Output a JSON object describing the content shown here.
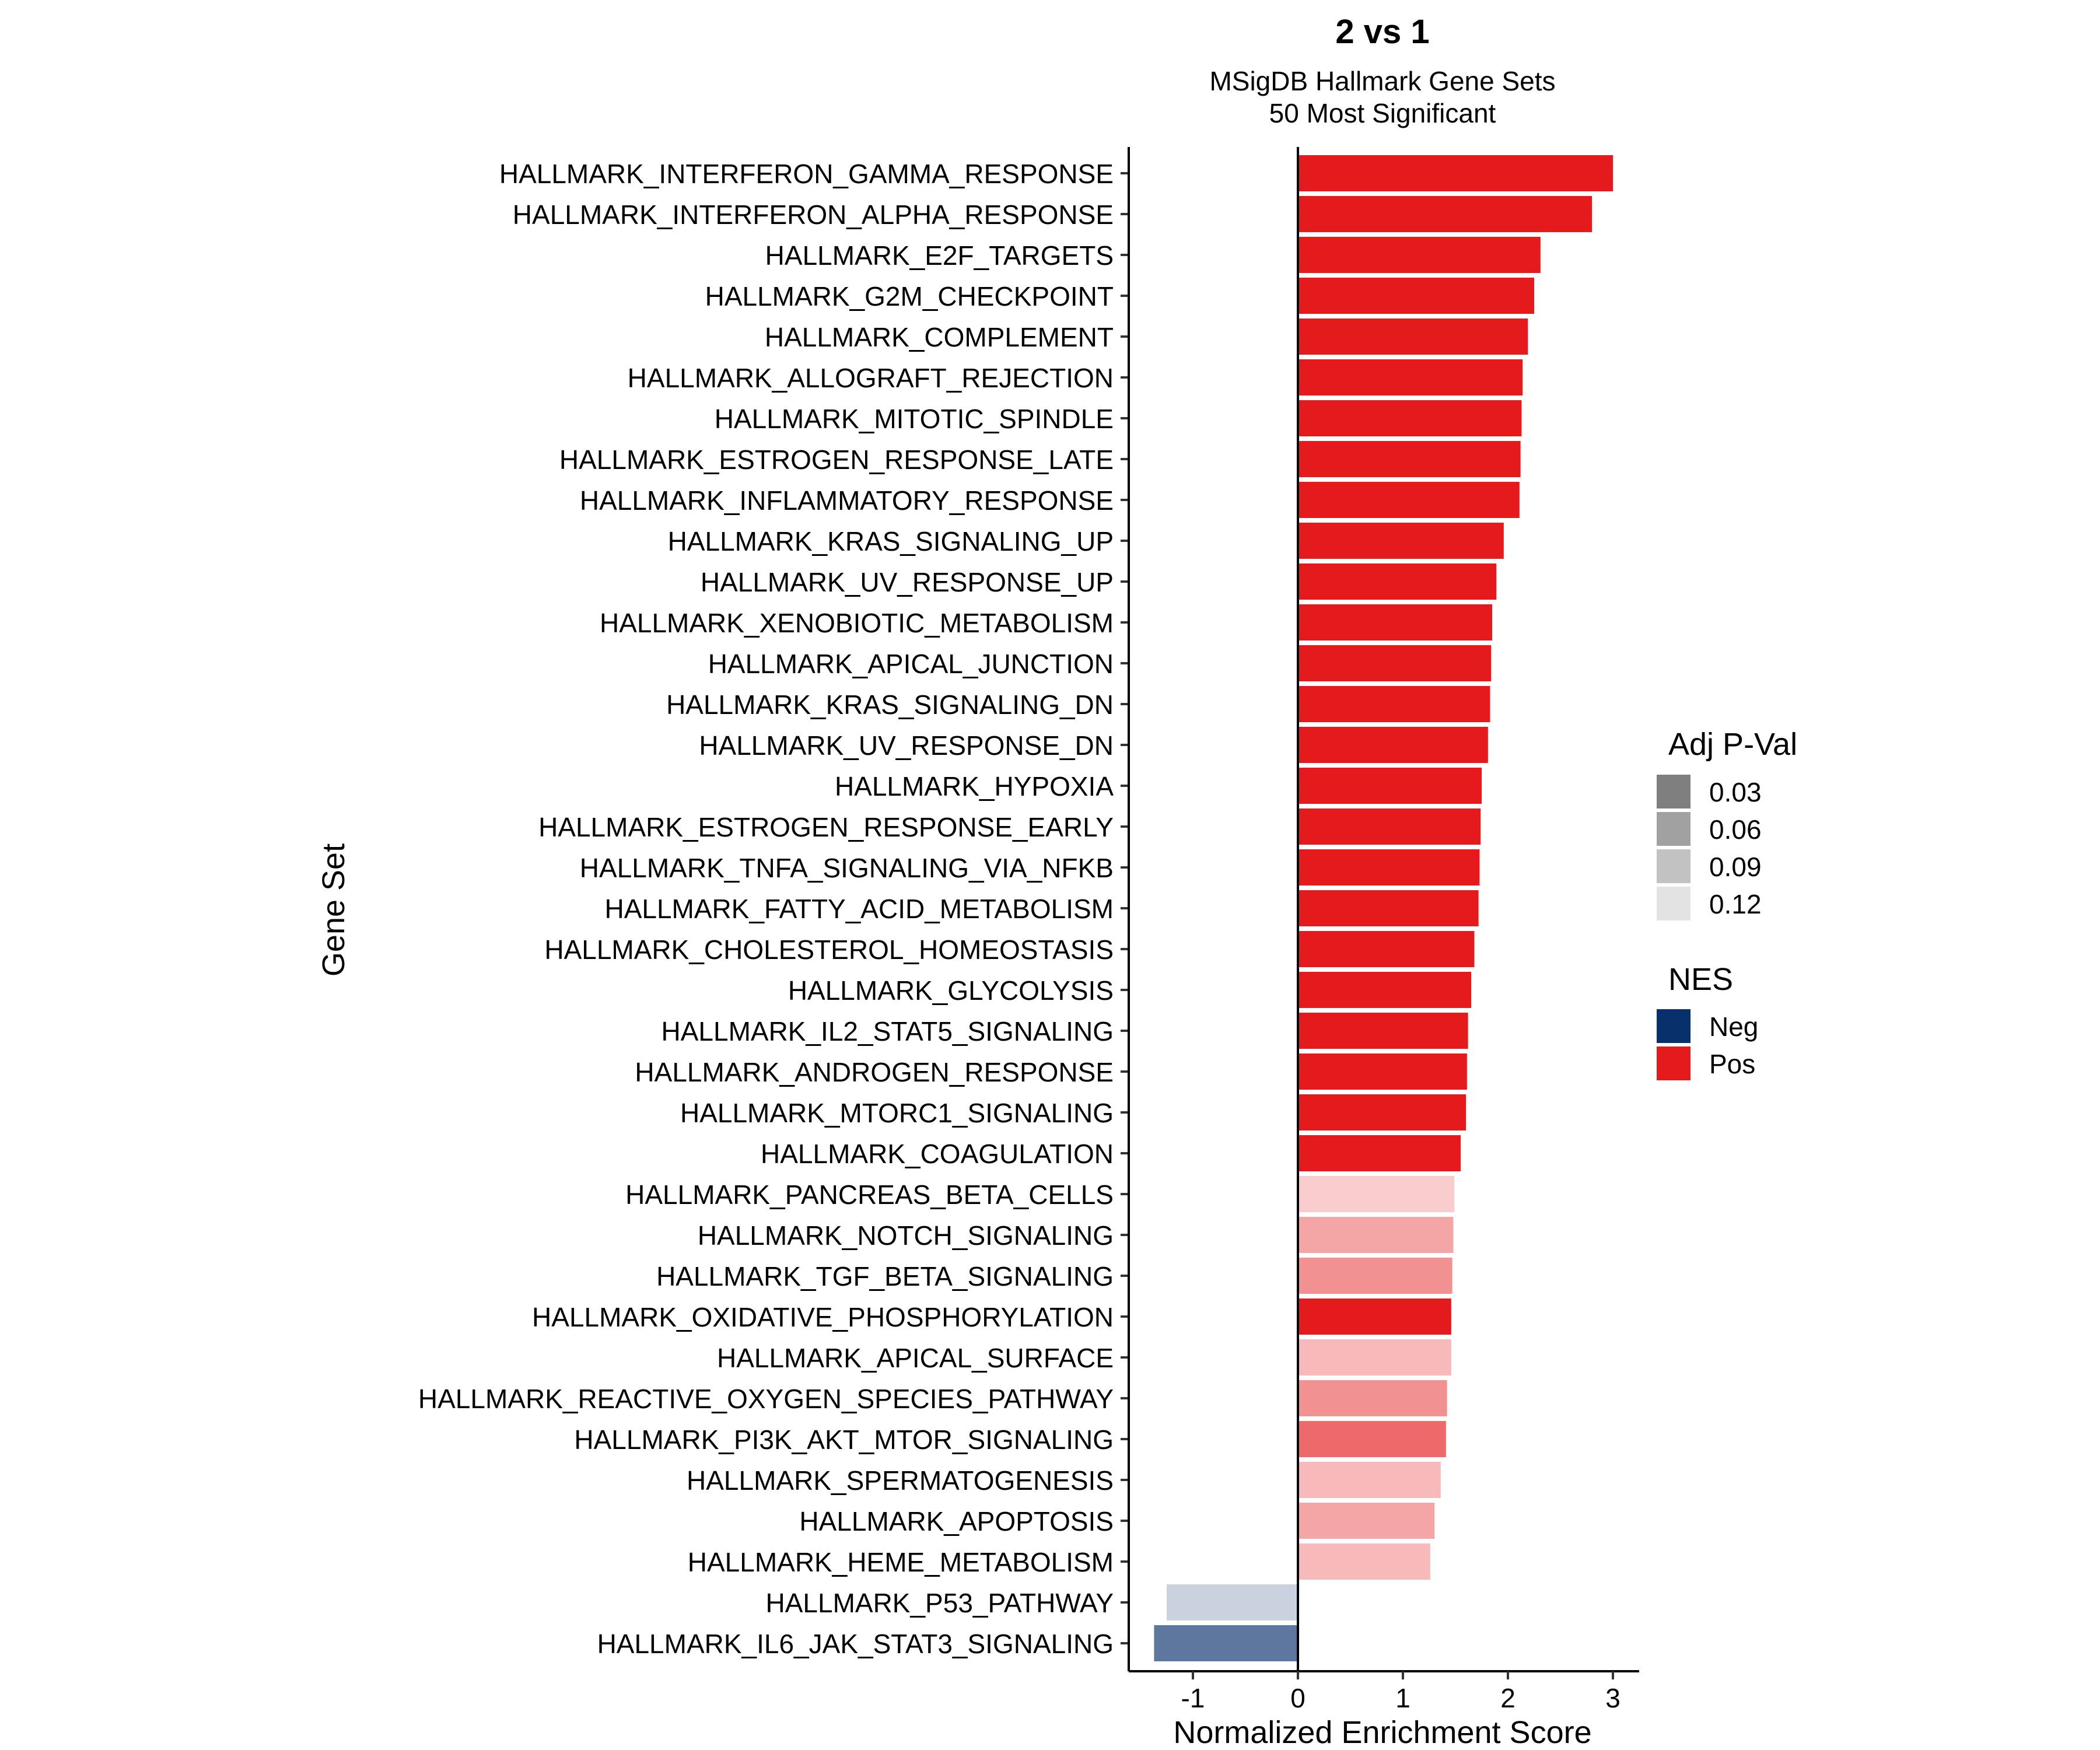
{
  "chart_data": {
    "type": "bar",
    "orientation": "horizontal",
    "title": "2 vs 1",
    "subtitle_lines": [
      "MSigDB Hallmark Gene Sets",
      "50 Most Significant"
    ],
    "xlabel": "Normalized Enrichment Score",
    "ylabel": "Gene Set",
    "xlim": [
      -1.55,
      3.2
    ],
    "xticks": [
      -1,
      0,
      1,
      2,
      3
    ],
    "grid": false,
    "colors": {
      "neg": "#08306B",
      "pos": "#E41A1C",
      "padj_swatch_base": "#000000"
    },
    "bars": [
      {
        "category": "HALLMARK_INTERFERON_GAMMA_RESPONSE",
        "nes": 3.0,
        "padj": 0.0
      },
      {
        "category": "HALLMARK_INTERFERON_ALPHA_RESPONSE",
        "nes": 2.8,
        "padj": 0.0
      },
      {
        "category": "HALLMARK_E2F_TARGETS",
        "nes": 2.31,
        "padj": 0.0
      },
      {
        "category": "HALLMARK_G2M_CHECKPOINT",
        "nes": 2.25,
        "padj": 0.0
      },
      {
        "category": "HALLMARK_COMPLEMENT",
        "nes": 2.19,
        "padj": 0.0
      },
      {
        "category": "HALLMARK_ALLOGRAFT_REJECTION",
        "nes": 2.14,
        "padj": 0.0
      },
      {
        "category": "HALLMARK_MITOTIC_SPINDLE",
        "nes": 2.13,
        "padj": 0.0
      },
      {
        "category": "HALLMARK_ESTROGEN_RESPONSE_LATE",
        "nes": 2.12,
        "padj": 0.0
      },
      {
        "category": "HALLMARK_INFLAMMATORY_RESPONSE",
        "nes": 2.11,
        "padj": 0.0
      },
      {
        "category": "HALLMARK_KRAS_SIGNALING_UP",
        "nes": 1.96,
        "padj": 0.0
      },
      {
        "category": "HALLMARK_UV_RESPONSE_UP",
        "nes": 1.89,
        "padj": 0.0
      },
      {
        "category": "HALLMARK_XENOBIOTIC_METABOLISM",
        "nes": 1.85,
        "padj": 0.0
      },
      {
        "category": "HALLMARK_APICAL_JUNCTION",
        "nes": 1.84,
        "padj": 0.0
      },
      {
        "category": "HALLMARK_KRAS_SIGNALING_DN",
        "nes": 1.83,
        "padj": 0.0
      },
      {
        "category": "HALLMARK_UV_RESPONSE_DN",
        "nes": 1.81,
        "padj": 0.0
      },
      {
        "category": "HALLMARK_HYPOXIA",
        "nes": 1.75,
        "padj": 0.0
      },
      {
        "category": "HALLMARK_ESTROGEN_RESPONSE_EARLY",
        "nes": 1.74,
        "padj": 0.0
      },
      {
        "category": "HALLMARK_TNFA_SIGNALING_VIA_NFKB",
        "nes": 1.73,
        "padj": 0.0
      },
      {
        "category": "HALLMARK_FATTY_ACID_METABOLISM",
        "nes": 1.72,
        "padj": 0.0
      },
      {
        "category": "HALLMARK_CHOLESTEROL_HOMEOSTASIS",
        "nes": 1.68,
        "padj": 0.0
      },
      {
        "category": "HALLMARK_GLYCOLYSIS",
        "nes": 1.65,
        "padj": 0.0
      },
      {
        "category": "HALLMARK_IL2_STAT5_SIGNALING",
        "nes": 1.62,
        "padj": 0.0
      },
      {
        "category": "HALLMARK_ANDROGEN_RESPONSE",
        "nes": 1.61,
        "padj": 0.02
      },
      {
        "category": "HALLMARK_MTORC1_SIGNALING",
        "nes": 1.6,
        "padj": 0.0
      },
      {
        "category": "HALLMARK_COAGULATION",
        "nes": 1.55,
        "padj": 0.02
      },
      {
        "category": "HALLMARK_PANCREAS_BETA_CELLS",
        "nes": 1.49,
        "padj": 0.12
      },
      {
        "category": "HALLMARK_NOTCH_SIGNALING",
        "nes": 1.48,
        "padj": 0.1
      },
      {
        "category": "HALLMARK_TGF_BETA_SIGNALING",
        "nes": 1.47,
        "padj": 0.09
      },
      {
        "category": "HALLMARK_OXIDATIVE_PHOSPHORYLATION",
        "nes": 1.46,
        "padj": 0.02
      },
      {
        "category": "HALLMARK_APICAL_SURFACE",
        "nes": 1.46,
        "padj": 0.11
      },
      {
        "category": "HALLMARK_REACTIVE_OXYGEN_SPECIES_PATHWAY",
        "nes": 1.42,
        "padj": 0.09
      },
      {
        "category": "HALLMARK_PI3K_AKT_MTOR_SIGNALING",
        "nes": 1.41,
        "padj": 0.07
      },
      {
        "category": "HALLMARK_SPERMATOGENESIS",
        "nes": 1.36,
        "padj": 0.11
      },
      {
        "category": "HALLMARK_APOPTOSIS",
        "nes": 1.3,
        "padj": 0.1
      },
      {
        "category": "HALLMARK_HEME_METABOLISM",
        "nes": 1.26,
        "padj": 0.11
      },
      {
        "category": "HALLMARK_P53_PATHWAY",
        "nes": -1.25,
        "padj": 0.12
      },
      {
        "category": "HALLMARK_IL6_JAK_STAT3_SIGNALING",
        "nes": -1.37,
        "padj": 0.07
      }
    ],
    "legend": {
      "placement": "right",
      "padj_title": "Adj P-Val",
      "padj_items": [
        {
          "label": "0.03",
          "padj": 0.03
        },
        {
          "label": "0.06",
          "padj": 0.06
        },
        {
          "label": "0.09",
          "padj": 0.09
        },
        {
          "label": "0.12",
          "padj": 0.12
        }
      ],
      "nes_title": "NES",
      "nes_items": [
        {
          "label": "Neg",
          "key": "neg"
        },
        {
          "label": "Pos",
          "key": "pos"
        }
      ]
    }
  }
}
